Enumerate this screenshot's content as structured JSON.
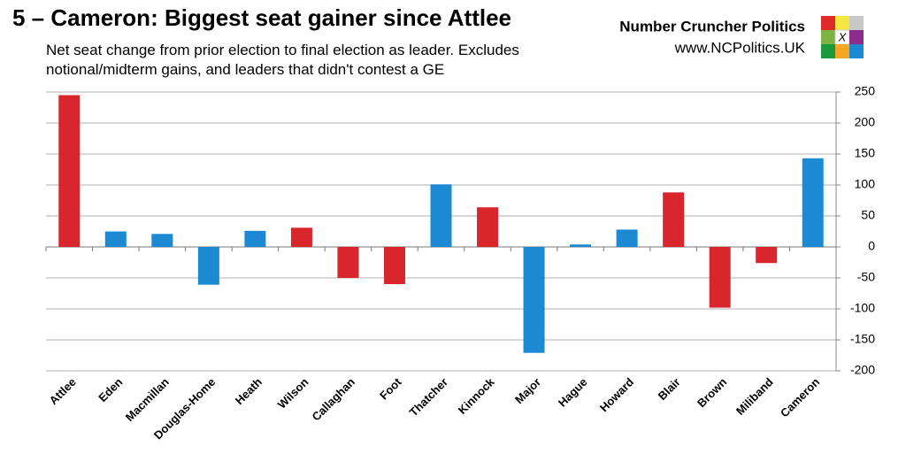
{
  "chart_data": {
    "type": "bar",
    "title": "5 – Cameron: Biggest seat gainer since Attlee",
    "subtitle": "Net seat change from prior election to final election as leader. Excludes notional/midterm gains, and leaders that didn't contest a GE",
    "brand": "Number Cruncher Politics",
    "website": "www.NCPolitics.UK",
    "logo_mark": "X",
    "categories": [
      "Attlee",
      "Eden",
      "Macmillan",
      "Douglas-Home",
      "Heath",
      "Wilson",
      "Callaghan",
      "Foot",
      "Thatcher",
      "Kinnock",
      "Major",
      "Hague",
      "Howard",
      "Blair",
      "Brown",
      "Miliband",
      "Cameron"
    ],
    "values": [
      245,
      25,
      21,
      -61,
      26,
      31,
      -50,
      -60,
      101,
      64,
      -171,
      4,
      28,
      88,
      -98,
      -26,
      143
    ],
    "colors": [
      "#d9262c",
      "#1b8ad3",
      "#1b8ad3",
      "#1b8ad3",
      "#1b8ad3",
      "#d9262c",
      "#d9262c",
      "#d9262c",
      "#1b8ad3",
      "#d9262c",
      "#1b8ad3",
      "#1b8ad3",
      "#1b8ad3",
      "#d9262c",
      "#d9262c",
      "#d9262c",
      "#1b8ad3"
    ],
    "ylim": [
      -200,
      250
    ],
    "yticks": [
      -200,
      -150,
      -100,
      -50,
      0,
      50,
      100,
      150,
      200,
      250
    ],
    "grid": true,
    "y_axis_side": "right"
  }
}
